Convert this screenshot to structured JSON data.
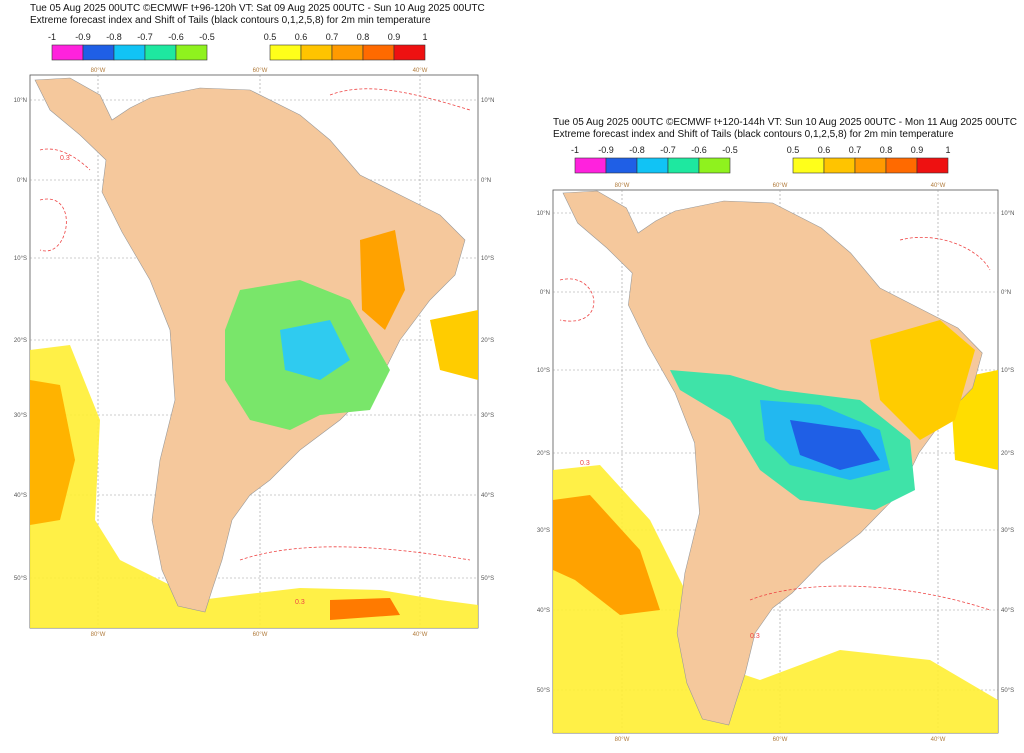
{
  "maps": [
    {
      "title_line1": "Tue 05 Aug 2025 00UTC ©ECMWF t+96-120h  VT: Sat 09 Aug 2025 00UTC - Sun 10 Aug 2025 00UTC",
      "title_line2": "Extreme forecast index and Shift of Tails (black contours 0,1,2,5,8) for 2m min temperature",
      "lon_labels": [
        "80°W",
        "60°W",
        "40°W"
      ],
      "lat_labels": [
        "10°N",
        "0°N",
        "10°S",
        "20°S",
        "30°S",
        "40°S",
        "50°S"
      ],
      "contour_label": "0.3"
    },
    {
      "title_line1": "Tue 05 Aug 2025 00UTC ©ECMWF t+120-144h  VT: Sun 10 Aug 2025 00UTC - Mon 11 Aug 2025 00UTC",
      "title_line2": "Extreme forecast index and Shift of Tails (black contours 0,1,2,5,8) for 2m min temperature",
      "lon_labels": [
        "80°W",
        "60°W",
        "40°W"
      ],
      "lat_labels": [
        "10°N",
        "0°N",
        "10°S",
        "20°S",
        "30°S",
        "40°S",
        "50°S"
      ],
      "contour_label": "0.3"
    }
  ],
  "colorbar": {
    "negative_labels": [
      "-1",
      "-0.9",
      "-0.8",
      "-0.7",
      "-0.6",
      "-0.5"
    ],
    "negative_colors": [
      "#ff22dd",
      "#1f5fe6",
      "#11c3f5",
      "#1ee8a0",
      "#8ff21e"
    ],
    "positive_labels": [
      "0.5",
      "0.6",
      "0.7",
      "0.8",
      "0.9",
      "1"
    ],
    "positive_colors": [
      "#ffff1a",
      "#ffc400",
      "#ff9a00",
      "#ff6a00",
      "#ee1111"
    ]
  },
  "colors": {
    "land": "#f5c89c",
    "cold_contour": "#3b3bdd",
    "warm_contour": "#ee4444"
  }
}
